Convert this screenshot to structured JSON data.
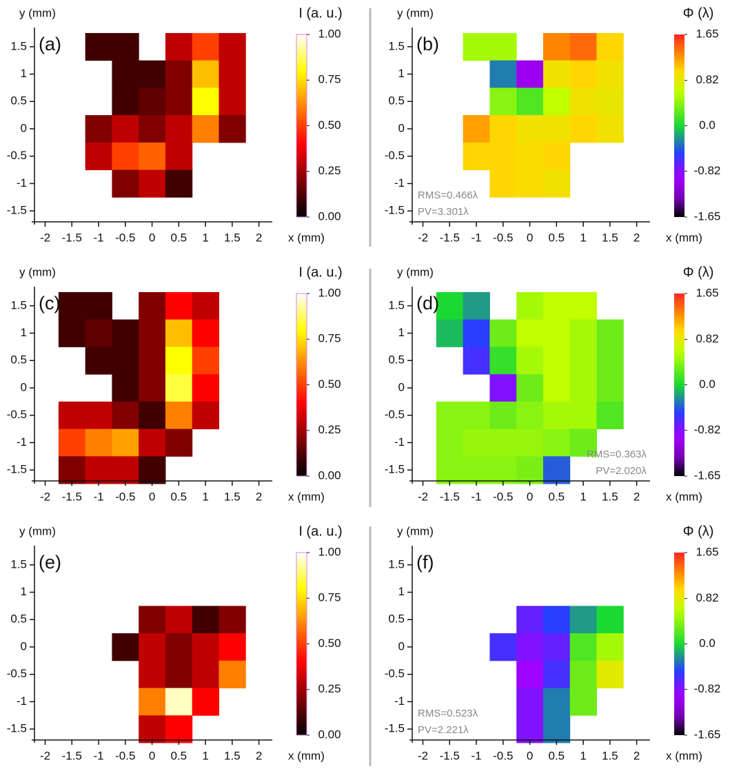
{
  "chart_data": [
    {
      "type": "heatmap",
      "panel_label": "(a)",
      "xlabel": "x (mm)",
      "ylabel": "y (mm)",
      "colorbar_label": "I (a. u.)",
      "colormap": "hot",
      "xlim": [
        -2.2,
        2.25
      ],
      "ylim": [
        -1.7,
        1.85
      ],
      "xticks": [
        -2,
        -1.5,
        -1,
        -0.5,
        0,
        0.5,
        1,
        1.5,
        2
      ],
      "yticks": [
        -1.5,
        -1,
        -0.5,
        0,
        0.5,
        1,
        1.5
      ],
      "x": [
        -2,
        -1.5,
        -1,
        -0.5,
        0,
        0.5,
        1,
        1.5,
        2
      ],
      "y": [
        1.5,
        1,
        0.5,
        0,
        -0.5,
        -1,
        -1.5
      ],
      "values": [
        [
          null,
          null,
          0.1,
          0.1,
          null,
          0.3,
          0.5,
          0.3,
          null
        ],
        [
          null,
          null,
          null,
          0.1,
          0.1,
          0.2,
          0.7,
          0.3,
          null
        ],
        [
          null,
          null,
          null,
          0.1,
          0.15,
          0.2,
          0.8,
          0.3,
          null
        ],
        [
          null,
          null,
          0.2,
          0.3,
          0.2,
          0.3,
          0.6,
          0.2,
          null
        ],
        [
          null,
          null,
          0.3,
          0.5,
          0.55,
          0.3,
          null,
          null,
          null
        ],
        [
          null,
          null,
          null,
          0.2,
          0.3,
          0.1,
          null,
          null,
          null
        ],
        [
          null,
          null,
          null,
          null,
          null,
          null,
          null,
          null,
          null
        ]
      ],
      "clim": [
        0,
        1
      ],
      "cticks": [
        {
          "value": 0,
          "label": "0.00"
        },
        {
          "value": 0.25,
          "label": "0.25"
        },
        {
          "value": 0.5,
          "label": "0.50"
        },
        {
          "value": 0.75,
          "label": "0.75"
        },
        {
          "value": 1,
          "label": "1.00"
        }
      ]
    },
    {
      "type": "heatmap",
      "panel_label": "(b)",
      "xlabel": "x (mm)",
      "ylabel": "y (mm)",
      "colorbar_label": "Φ (λ)",
      "colormap": "rainbow",
      "xlim": [
        -2.2,
        2.25
      ],
      "ylim": [
        -1.7,
        1.85
      ],
      "xticks": [
        -2,
        -1.5,
        -1,
        -0.5,
        0,
        0.5,
        1,
        1.5,
        2
      ],
      "yticks": [
        -1.5,
        -1,
        -0.5,
        0,
        0.5,
        1,
        1.5
      ],
      "x": [
        -2,
        -1.5,
        -1,
        -0.5,
        0,
        0.5,
        1,
        1.5,
        2
      ],
      "y": [
        1.5,
        1,
        0.5,
        0,
        -0.5,
        -1,
        -1.5
      ],
      "values": [
        [
          null,
          null,
          0.5,
          0.5,
          null,
          1.3,
          1.4,
          1.0,
          null
        ],
        [
          null,
          null,
          null,
          -0.3,
          -1.0,
          0.9,
          1.0,
          0.9,
          null
        ],
        [
          null,
          null,
          null,
          0.4,
          0.2,
          0.6,
          0.9,
          0.85,
          null
        ],
        [
          null,
          null,
          1.2,
          1.0,
          0.9,
          0.9,
          1.0,
          0.9,
          null
        ],
        [
          null,
          null,
          1.0,
          1.0,
          0.95,
          1.0,
          null,
          null,
          null
        ],
        [
          null,
          null,
          null,
          1.0,
          0.95,
          0.9,
          null,
          null,
          null
        ],
        [
          null,
          null,
          null,
          null,
          null,
          null,
          null,
          null,
          null
        ]
      ],
      "clim": [
        -1.65,
        1.65
      ],
      "cticks": [
        -1.65,
        -0.82,
        {
          "value": 0,
          "label": "0.0"
        },
        0.82,
        1.65
      ],
      "annotations": [
        "RMS=0.466λ",
        "PV=3.301λ"
      ],
      "annotation_corner": "lower left"
    },
    {
      "type": "heatmap",
      "panel_label": "(c)",
      "xlabel": "x (mm)",
      "ylabel": "y (mm)",
      "colorbar_label": "I (a. u.)",
      "colormap": "hot",
      "xlim": [
        -2.2,
        2.25
      ],
      "ylim": [
        -1.7,
        1.85
      ],
      "xticks": [
        -2,
        -1.5,
        -1,
        -0.5,
        0,
        0.5,
        1,
        1.5,
        2
      ],
      "yticks": [
        -1.5,
        -1,
        -0.5,
        0,
        0.5,
        1,
        1.5
      ],
      "x": [
        -2,
        -1.5,
        -1,
        -0.5,
        0,
        0.5,
        1,
        1.5,
        2
      ],
      "y": [
        1.5,
        1,
        0.5,
        0,
        -0.5,
        -1,
        -1.5
      ],
      "values": [
        [
          null,
          0.1,
          0.1,
          null,
          0.2,
          0.4,
          0.3,
          null,
          null
        ],
        [
          null,
          0.1,
          0.15,
          0.1,
          0.2,
          0.7,
          0.4,
          null,
          null
        ],
        [
          null,
          null,
          0.1,
          0.1,
          0.2,
          0.8,
          0.5,
          null,
          null
        ],
        [
          null,
          null,
          null,
          0.1,
          0.2,
          0.85,
          0.4,
          null,
          null
        ],
        [
          null,
          0.3,
          0.3,
          0.2,
          0.1,
          0.6,
          0.3,
          null,
          null
        ],
        [
          null,
          0.5,
          0.6,
          0.65,
          0.3,
          0.2,
          null,
          null,
          null
        ],
        [
          null,
          0.2,
          0.3,
          0.3,
          0.1,
          null,
          null,
          null,
          null
        ]
      ],
      "clim": [
        0,
        1
      ],
      "cticks": [
        {
          "value": 0,
          "label": "0.00"
        },
        {
          "value": 0.25,
          "label": "0.25"
        },
        {
          "value": 0.5,
          "label": "0.50"
        },
        {
          "value": 0.75,
          "label": "0.75"
        },
        {
          "value": 1,
          "label": "1.00"
        }
      ]
    },
    {
      "type": "heatmap",
      "panel_label": "(d)",
      "xlabel": "x (mm)",
      "ylabel": "y (mm)",
      "colorbar_label": "Φ (λ)",
      "colormap": "rainbow",
      "xlim": [
        -2.2,
        2.25
      ],
      "ylim": [
        -1.7,
        1.85
      ],
      "xticks": [
        -2,
        -1.5,
        -1,
        -0.5,
        0,
        0.5,
        1,
        1.5,
        2
      ],
      "yticks": [
        -1.5,
        -1,
        -0.5,
        0,
        0.5,
        1,
        1.5
      ],
      "x": [
        -2,
        -1.5,
        -1,
        -0.5,
        0,
        0.5,
        1,
        1.5,
        2
      ],
      "y": [
        1.5,
        1,
        0.5,
        0,
        -0.5,
        -1,
        -1.5
      ],
      "values": [
        [
          null,
          0.0,
          -0.2,
          null,
          0.5,
          0.6,
          0.6,
          null,
          null
        ],
        [
          null,
          -0.1,
          -0.5,
          0.3,
          0.6,
          0.6,
          0.5,
          0.3,
          null
        ],
        [
          null,
          null,
          -0.6,
          0.1,
          0.5,
          0.6,
          0.5,
          0.3,
          null
        ],
        [
          null,
          null,
          null,
          -0.8,
          0.3,
          0.6,
          0.5,
          0.3,
          null
        ],
        [
          null,
          0.4,
          0.4,
          0.3,
          0.4,
          0.5,
          0.5,
          0.2,
          null
        ],
        [
          null,
          0.4,
          0.45,
          0.45,
          0.45,
          0.4,
          0.3,
          null,
          null
        ],
        [
          null,
          0.4,
          0.4,
          0.4,
          0.35,
          -0.4,
          null,
          null,
          null
        ]
      ],
      "clim": [
        -1.65,
        1.65
      ],
      "cticks": [
        -1.65,
        -0.82,
        {
          "value": 0,
          "label": "0.0"
        },
        0.82,
        1.65
      ],
      "annotations": [
        "RMS=0.363λ",
        "PV=2.020λ"
      ],
      "annotation_corner": "lower right"
    },
    {
      "type": "heatmap",
      "panel_label": "(e)",
      "xlabel": "x (mm)",
      "ylabel": "y (mm)",
      "colorbar_label": "I (a. u.)",
      "colormap": "hot",
      "xlim": [
        -2.2,
        2.25
      ],
      "ylim": [
        -1.7,
        1.85
      ],
      "xticks": [
        -2,
        -1.5,
        -1,
        -0.5,
        0,
        0.5,
        1,
        1.5,
        2
      ],
      "yticks": [
        -1.5,
        -1,
        -0.5,
        0,
        0.5,
        1,
        1.5
      ],
      "x": [
        -2,
        -1.5,
        -1,
        -0.5,
        0,
        0.5,
        1,
        1.5,
        2
      ],
      "y": [
        1.5,
        1,
        0.5,
        0,
        -0.5,
        -1,
        -1.5
      ],
      "values": [
        [
          null,
          null,
          null,
          null,
          null,
          null,
          null,
          null,
          null
        ],
        [
          null,
          null,
          null,
          null,
          null,
          null,
          null,
          null,
          null
        ],
        [
          null,
          null,
          null,
          null,
          0.2,
          0.3,
          0.1,
          0.2,
          null
        ],
        [
          null,
          null,
          null,
          0.1,
          0.3,
          0.2,
          0.3,
          0.4,
          null
        ],
        [
          null,
          null,
          null,
          null,
          0.3,
          0.2,
          0.3,
          0.6,
          null
        ],
        [
          null,
          null,
          null,
          null,
          0.6,
          0.95,
          0.4,
          null,
          null
        ],
        [
          null,
          null,
          null,
          null,
          0.3,
          0.4,
          null,
          null,
          null
        ]
      ],
      "clim": [
        0,
        1
      ],
      "cticks": [
        {
          "value": 0,
          "label": "0.00"
        },
        {
          "value": 0.25,
          "label": "0.25"
        },
        {
          "value": 0.5,
          "label": "0.50"
        },
        {
          "value": 0.75,
          "label": "0.75"
        },
        {
          "value": 1,
          "label": "1.00"
        }
      ]
    },
    {
      "type": "heatmap",
      "panel_label": "(f)",
      "xlabel": "x (mm)",
      "ylabel": "y (mm)",
      "colorbar_label": "Φ (λ)",
      "colormap": "rainbow",
      "xlim": [
        -2.2,
        2.25
      ],
      "ylim": [
        -1.7,
        1.85
      ],
      "xticks": [
        -2,
        -1.5,
        -1,
        -0.5,
        0,
        0.5,
        1,
        1.5,
        2
      ],
      "yticks": [
        -1.5,
        -1,
        -0.5,
        0,
        0.5,
        1,
        1.5
      ],
      "x": [
        -2,
        -1.5,
        -1,
        -0.5,
        0,
        0.5,
        1,
        1.5,
        2
      ],
      "y": [
        1.5,
        1,
        0.5,
        0,
        -0.5,
        -1,
        -1.5
      ],
      "values": [
        [
          null,
          null,
          null,
          null,
          null,
          null,
          null,
          null,
          null
        ],
        [
          null,
          null,
          null,
          null,
          null,
          null,
          null,
          null,
          null
        ],
        [
          null,
          null,
          null,
          null,
          -0.7,
          -0.5,
          -0.2,
          0.0,
          null
        ],
        [
          null,
          null,
          null,
          -0.6,
          -0.8,
          -0.7,
          0.2,
          0.5,
          null
        ],
        [
          null,
          null,
          null,
          null,
          -0.9,
          -0.6,
          0.3,
          0.8,
          null
        ],
        [
          null,
          null,
          null,
          null,
          -0.8,
          -0.3,
          0.3,
          null,
          null
        ],
        [
          null,
          null,
          null,
          null,
          -0.8,
          -0.3,
          null,
          null,
          null
        ]
      ],
      "clim": [
        -1.65,
        1.65
      ],
      "cticks": [
        -1.65,
        -0.82,
        {
          "value": 0,
          "label": "0.0"
        },
        0.82,
        1.65
      ],
      "annotations": [
        "RMS=0.523λ",
        "PV=2.221λ"
      ],
      "annotation_corner": "lower left"
    }
  ]
}
